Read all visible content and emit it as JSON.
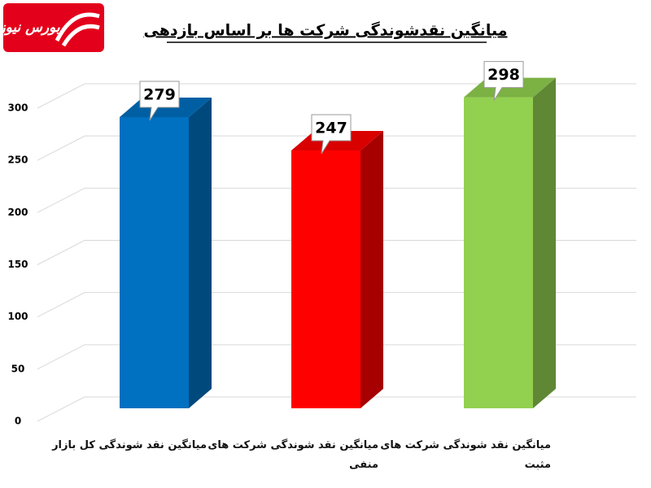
{
  "logo": "بورس نیوز",
  "chart_data": {
    "type": "bar3d",
    "title": "میانگین نقدشوندگی شرکت ها بر اساس بازدهی",
    "categories": [
      "میانگین نقد شوندگی کل بازار",
      "میانگین نقد شوندگی شرکت های منفی",
      "میانگین نقد شوندگی شرکت های مثبت"
    ],
    "values": [
      279,
      247,
      298
    ],
    "colors": [
      "#0070c0",
      "#ff0000",
      "#92d050"
    ],
    "ylim": [
      0,
      300
    ],
    "yticks": [
      0,
      50,
      100,
      150,
      200,
      250,
      300
    ],
    "grid": true
  }
}
